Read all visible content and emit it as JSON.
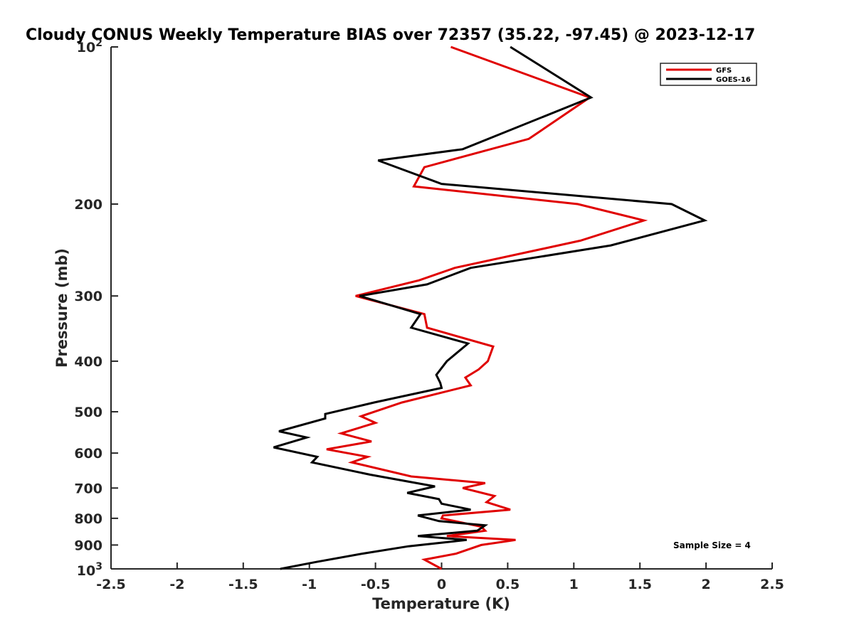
{
  "chart_data": {
    "type": "line",
    "title": "Cloudy CONUS Weekly Temperature BIAS over 72357 (35.22, -97.45) @ 2023-12-17",
    "xlabel": "Temperature (K)",
    "ylabel": "Pressure (mb)",
    "xlim": [
      -2.5,
      2.5
    ],
    "ylim": [
      100,
      1000
    ],
    "y_scale": "log",
    "y_reversed": true,
    "grid": false,
    "legend_position": "top-right",
    "x_ticks": [
      -2.5,
      -2,
      -1.5,
      -1,
      -0.5,
      0,
      0.5,
      1,
      1.5,
      2,
      2.5
    ],
    "x_tick_labels": [
      "-2.5",
      "-2",
      "-1.5",
      "-1",
      "-0.5",
      "0",
      "0.5",
      "1",
      "1.5",
      "2",
      "2.5"
    ],
    "y_ticks": [
      200,
      300,
      400,
      500,
      600,
      700,
      800,
      900
    ],
    "y_tick_labels": [
      "200",
      "300",
      "400",
      "500",
      "600",
      "700",
      "800",
      "900"
    ],
    "y_end_labels": {
      "top_base": "10",
      "top_exp": "2",
      "bottom_base": "10",
      "bottom_exp": "3"
    },
    "annotation": "Sample Size = 4",
    "series": [
      {
        "name": "GFS",
        "color": "#e00000",
        "points": [
          [
            0.07,
            100
          ],
          [
            1.12,
            125
          ],
          [
            0.66,
            150
          ],
          [
            -0.13,
            170
          ],
          [
            -0.21,
            185
          ],
          [
            1.03,
            200
          ],
          [
            1.53,
            215
          ],
          [
            1.05,
            235
          ],
          [
            0.1,
            265
          ],
          [
            -0.17,
            280
          ],
          [
            -0.65,
            300
          ],
          [
            -0.13,
            325
          ],
          [
            -0.11,
            345
          ],
          [
            0.39,
            375
          ],
          [
            0.35,
            400
          ],
          [
            0.28,
            415
          ],
          [
            0.18,
            430
          ],
          [
            0.22,
            445
          ],
          [
            -0.3,
            480
          ],
          [
            -0.61,
            510
          ],
          [
            -0.5,
            525
          ],
          [
            -0.76,
            550
          ],
          [
            -0.53,
            570
          ],
          [
            -0.87,
            590
          ],
          [
            -0.56,
            610
          ],
          [
            -0.68,
            625
          ],
          [
            -0.23,
            665
          ],
          [
            0.33,
            685
          ],
          [
            0.16,
            700
          ],
          [
            0.4,
            725
          ],
          [
            0.34,
            745
          ],
          [
            0.52,
            770
          ],
          [
            0.01,
            790
          ],
          [
            0,
            800
          ],
          [
            0.3,
            830
          ],
          [
            0.33,
            845
          ],
          [
            0.04,
            865
          ],
          [
            0.56,
            880
          ],
          [
            0.3,
            900
          ],
          [
            0.11,
            935
          ],
          [
            -0.13,
            960
          ],
          [
            0,
            1000
          ]
        ]
      },
      {
        "name": "GOES-16",
        "color": "#000000",
        "points": [
          [
            0.52,
            100
          ],
          [
            1.13,
            125
          ],
          [
            0.16,
            157
          ],
          [
            -0.48,
            165
          ],
          [
            0,
            183
          ],
          [
            1.74,
            200
          ],
          [
            1.99,
            215
          ],
          [
            1.28,
            240
          ],
          [
            0.22,
            265
          ],
          [
            -0.11,
            285
          ],
          [
            -0.62,
            300
          ],
          [
            -0.16,
            325
          ],
          [
            -0.23,
            345
          ],
          [
            0.2,
            370
          ],
          [
            0.04,
            400
          ],
          [
            -0.04,
            425
          ],
          [
            -0.01,
            440
          ],
          [
            0,
            450
          ],
          [
            -0.51,
            480
          ],
          [
            -0.88,
            505
          ],
          [
            -0.88,
            515
          ],
          [
            -1.23,
            545
          ],
          [
            -1.02,
            560
          ],
          [
            -1.27,
            585
          ],
          [
            -0.94,
            610
          ],
          [
            -0.98,
            625
          ],
          [
            -0.54,
            660
          ],
          [
            -0.05,
            695
          ],
          [
            -0.26,
            715
          ],
          [
            -0.02,
            735
          ],
          [
            0,
            750
          ],
          [
            0.22,
            770
          ],
          [
            -0.18,
            790
          ],
          [
            -0.02,
            810
          ],
          [
            0.33,
            825
          ],
          [
            0.27,
            845
          ],
          [
            -0.18,
            865
          ],
          [
            0.19,
            880
          ],
          [
            -0.25,
            905
          ],
          [
            -0.6,
            935
          ],
          [
            -0.95,
            970
          ],
          [
            -1.22,
            1000
          ]
        ]
      }
    ]
  }
}
